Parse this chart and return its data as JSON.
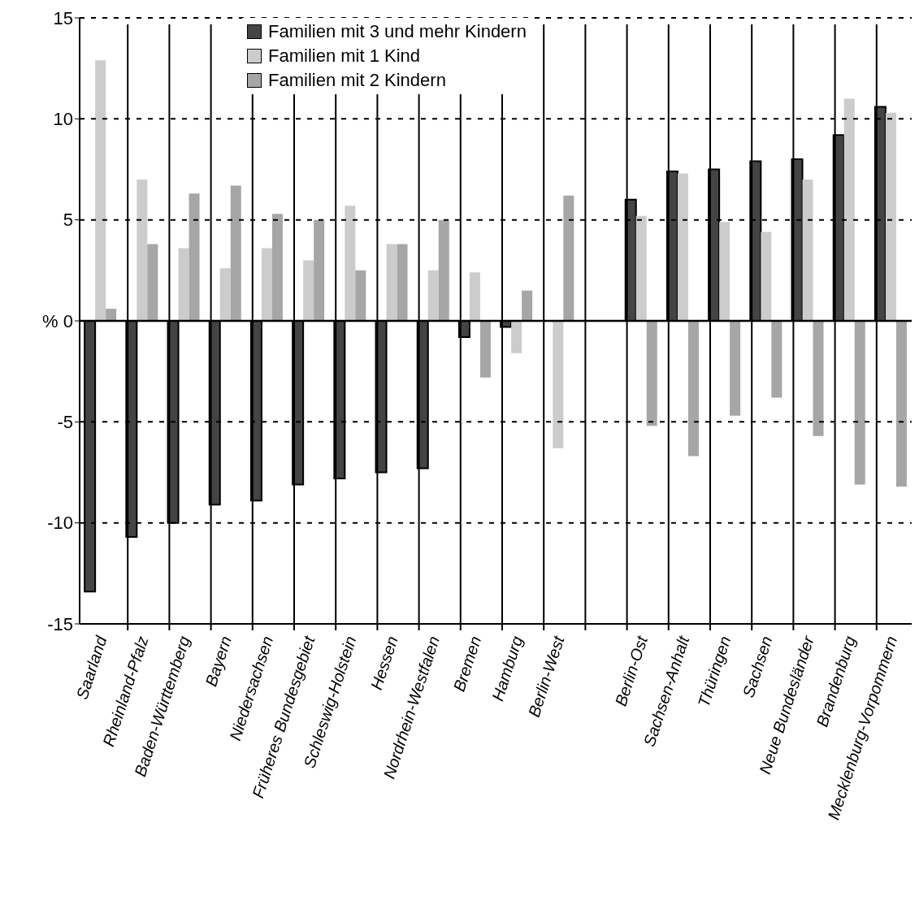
{
  "chart_data": {
    "type": "bar",
    "categories": [
      "Saarland",
      "Rheinland-Pfalz",
      "Baden-Württemberg",
      "Bayern",
      "Niedersachsen",
      "Früheres Bundesgebiet",
      "Schleswig-Holstein",
      "Hessen",
      "Nordrhein-Westfalen",
      "Bremen",
      "Hamburg",
      "Berlin-West",
      null,
      "Berlin-Ost",
      "Sachsen-Anhalt",
      "Thüringen",
      "Sachsen",
      "Neue Bundesländer",
      "Brandenburg",
      "Mecklenburg-Vorpommern"
    ],
    "series": [
      {
        "name": "Familien mit 3 und mehr Kindern",
        "color": "#444444",
        "values": [
          -13.4,
          -10.7,
          -10.0,
          -9.1,
          -8.9,
          -8.1,
          -7.8,
          -7.5,
          -7.3,
          -0.8,
          -0.3,
          null,
          null,
          6.0,
          7.4,
          7.5,
          7.9,
          8.0,
          9.2,
          10.6
        ]
      },
      {
        "name": "Familien mit 1 Kind",
        "color": "#cccccc",
        "values": [
          12.9,
          7.0,
          3.6,
          2.6,
          3.6,
          3.0,
          5.7,
          3.8,
          2.5,
          2.4,
          -1.6,
          -6.3,
          null,
          5.2,
          7.3,
          4.9,
          4.4,
          7.0,
          11.0,
          10.3
        ]
      },
      {
        "name": "Familien mit 2 Kindern",
        "color": "#a6a6a6",
        "values": [
          0.6,
          3.8,
          6.3,
          6.7,
          5.3,
          5.0,
          2.5,
          3.8,
          5.0,
          -2.8,
          1.5,
          6.2,
          null,
          -5.2,
          -6.7,
          -4.7,
          -3.8,
          -5.7,
          -8.1,
          -8.2
        ]
      }
    ],
    "ylim": [
      -15,
      15
    ],
    "yticks": [
      -15,
      -10,
      -5,
      {
        "value": 0,
        "label": "% 0"
      },
      5,
      10,
      15
    ],
    "grid": true,
    "legend": "top"
  }
}
